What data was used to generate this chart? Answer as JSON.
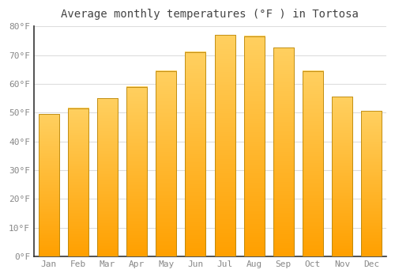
{
  "title": "Average monthly temperatures (°F ) in Tortosa",
  "months": [
    "Jan",
    "Feb",
    "Mar",
    "Apr",
    "May",
    "Jun",
    "Jul",
    "Aug",
    "Sep",
    "Oct",
    "Nov",
    "Dec"
  ],
  "values": [
    49.5,
    51.5,
    55.0,
    59.0,
    64.5,
    71.0,
    77.0,
    76.5,
    72.5,
    64.5,
    55.5,
    50.5
  ],
  "bar_color_top": "#FFD060",
  "bar_color_bottom": "#FFA000",
  "bar_edge_color": "#B8860B",
  "background_color": "#FFFFFF",
  "plot_bg_color": "#FFFFFF",
  "grid_color": "#DDDDDD",
  "ylim": [
    0,
    80
  ],
  "yticks": [
    0,
    10,
    20,
    30,
    40,
    50,
    60,
    70,
    80
  ],
  "title_fontsize": 10,
  "tick_fontsize": 8,
  "tick_color": "#888888",
  "title_color": "#444444",
  "bar_width": 0.7
}
